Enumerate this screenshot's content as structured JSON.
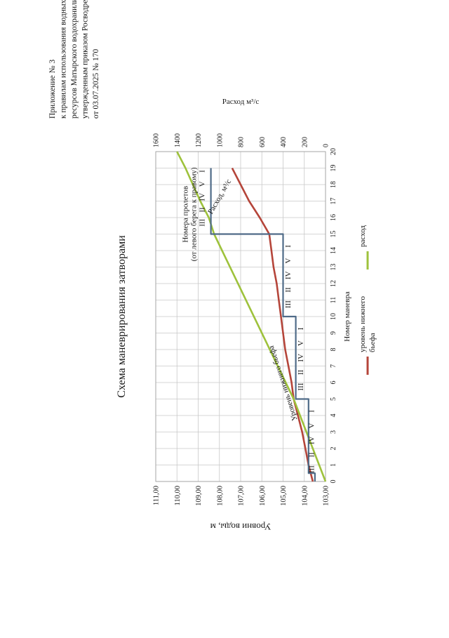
{
  "header": {
    "lines": [
      "Приложение № 3",
      "к правилам использования водных",
      "ресурсов Матырского водохранилища,",
      "утвержденным приказом Росводресурсов",
      "от 03.07.2025 № 170"
    ]
  },
  "chart_data": {
    "type": "line",
    "title": "Схема маневрирования затворами",
    "xlabel": "Номер маневра",
    "ylabel_left": "Уровни воды, м",
    "ylabel_right": "Расход м³/с",
    "x_ticks": [
      "0",
      "1",
      "2",
      "3",
      "4",
      "5",
      "6",
      "7",
      "8",
      "9",
      "10",
      "11",
      "12",
      "13",
      "14",
      "15",
      "16",
      "17",
      "18",
      "19",
      "20"
    ],
    "y_left_ticks": [
      "103,00",
      "104,00",
      "105,00",
      "106,00",
      "107,00",
      "108,00",
      "109,00",
      "110,00",
      "111,00"
    ],
    "y_right_ticks": [
      "0",
      "200",
      "400",
      "600",
      "800",
      "1000",
      "1200",
      "1400",
      "1600"
    ],
    "ylim_left": [
      103,
      111
    ],
    "ylim_right": [
      0,
      1600
    ],
    "xlim": [
      0,
      20
    ],
    "grid": true,
    "series": [
      {
        "name": "уровень нижнего бьефа",
        "axis": "left",
        "color": "#b5453a",
        "x": [
          0,
          1,
          2,
          3,
          4,
          5,
          6,
          7,
          8,
          9,
          10,
          11,
          12,
          13,
          14,
          15,
          16,
          17,
          18,
          19
        ],
        "y": [
          103.6,
          103.8,
          103.95,
          104.1,
          104.3,
          104.5,
          104.6,
          104.75,
          104.9,
          105.0,
          105.1,
          105.2,
          105.3,
          105.45,
          105.55,
          105.65,
          106.1,
          106.6,
          107.0,
          107.4
        ]
      },
      {
        "name": "расход",
        "axis": "right",
        "color": "#9ec23c",
        "x": [
          0,
          5,
          15,
          16,
          17,
          18,
          19,
          20
        ],
        "y": [
          0,
          300,
          1050,
          1100,
          1180,
          1250,
          1320,
          1400
        ]
      },
      {
        "name": "Номера пролетов (от левого берега к правому)",
        "axis": "left",
        "color": "#4f6b88",
        "step": true,
        "x": [
          0,
          0.5,
          0.5,
          5,
          5,
          10,
          10,
          15,
          15,
          19
        ],
        "y": [
          103.5,
          103.5,
          103.8,
          103.8,
          104.4,
          104.4,
          105.0,
          105.0,
          108.4,
          108.4
        ]
      }
    ],
    "bay_groups": [
      {
        "labels": [
          "I",
          "V",
          "IV",
          "II",
          "III"
        ],
        "x_from": 0.3,
        "x_to": 4.7
      },
      {
        "labels": [
          "I",
          "V",
          "IV",
          "II",
          "III"
        ],
        "x_from": 5.3,
        "x_to": 9.7
      },
      {
        "labels": [
          "I",
          "V",
          "IV",
          "II",
          "III"
        ],
        "x_from": 10.3,
        "x_to": 14.7
      },
      {
        "labels": [
          "I",
          "V",
          "IV",
          "II",
          "III"
        ],
        "x_from": 15.3,
        "x_to": 19.2
      }
    ],
    "annotations": {
      "bays_label_1": "Номера пролетов",
      "bays_label_2": "(от левого берега к правому)",
      "flow_curve_label": "Расход, м³/с",
      "level_curve_label": "Уровень нижнего бьефа"
    },
    "legend": {
      "placement": "bottom",
      "items": [
        {
          "label_1": "уровень нижнего",
          "label_2": "бьефа",
          "color": "#b5453a"
        },
        {
          "label_1": "расход",
          "label_2": "",
          "color": "#9ec23c"
        }
      ]
    }
  }
}
